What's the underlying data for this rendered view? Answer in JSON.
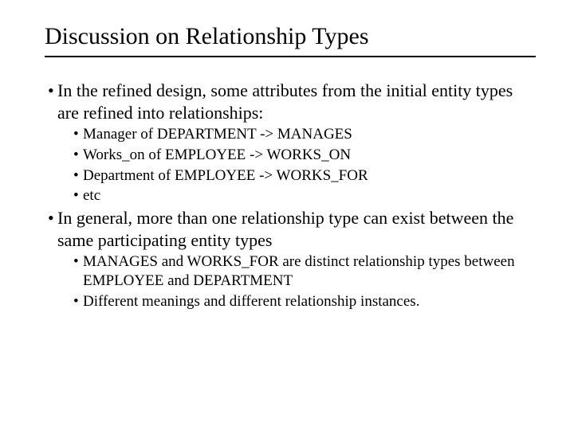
{
  "title": "Discussion on Relationship Types",
  "colors": {
    "text": "#000000",
    "background": "#ffffff",
    "rule": "#000000"
  },
  "typography": {
    "title_fontsize_pt": 22,
    "lvl1_fontsize_pt": 17,
    "lvl2_fontsize_pt": 14,
    "font_family": "Times New Roman"
  },
  "bullets": [
    {
      "text": "In the refined design, some attributes from the initial entity types are refined into relationships:",
      "children": [
        {
          "text": "Manager of DEPARTMENT -> MANAGES"
        },
        {
          "text": "Works_on of EMPLOYEE -> WORKS_ON"
        },
        {
          "text": "Department of EMPLOYEE -> WORKS_FOR"
        },
        {
          "text": "etc"
        }
      ]
    },
    {
      "text": "In general, more than one relationship type can exist between the same participating entity types",
      "children": [
        {
          "text": "MANAGES and WORKS_FOR are distinct relationship types between EMPLOYEE and DEPARTMENT"
        },
        {
          "text": "Different meanings and different relationship instances."
        }
      ]
    }
  ]
}
